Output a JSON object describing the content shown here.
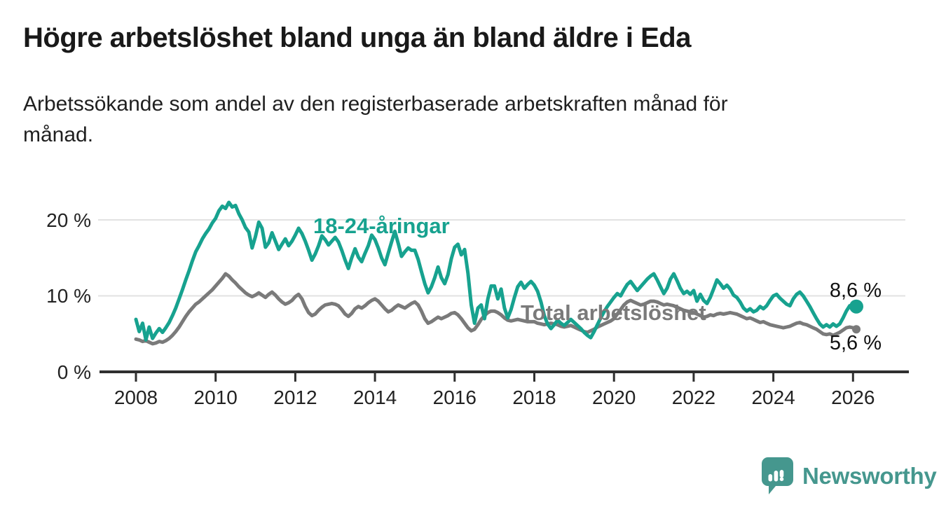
{
  "header": {
    "title": "Högre arbetslöshet bland unga än bland äldre i Eda",
    "subtitle_lines": [
      "Arbetssökande som andel av den registerbaserade arbetskraften månad för",
      "månad."
    ]
  },
  "chart_data": {
    "type": "line",
    "frequency": "monthly",
    "x_start": "2008-01",
    "x_end": "2026-02",
    "x_tick_labels": [
      "2008",
      "2010",
      "2012",
      "2014",
      "2016",
      "2018",
      "2020",
      "2022",
      "2024",
      "2026"
    ],
    "y_tick_labels": [
      "20 %",
      "10 %",
      "0 %"
    ],
    "ylim": [
      0,
      23
    ],
    "unit": "%",
    "grid": "horizontal",
    "legend_position": "inline-labels",
    "series": [
      {
        "name": "18-24-åringar",
        "color": "#17a28f",
        "end_label": "8,6 %",
        "end_value": 8.6,
        "values": [
          6.9,
          5.3,
          6.4,
          4.2,
          5.9,
          4.4,
          5.1,
          5.7,
          5.2,
          5.8,
          6.5,
          7.4,
          8.4,
          9.6,
          10.8,
          12.1,
          13.3,
          14.6,
          15.8,
          16.6,
          17.5,
          18.2,
          18.8,
          19.6,
          20.2,
          21.2,
          21.8,
          21.5,
          22.3,
          21.7,
          21.9,
          20.8,
          20.0,
          19.0,
          18.4,
          16.3,
          17.8,
          19.7,
          18.9,
          16.4,
          17.0,
          18.3,
          17.2,
          16.1,
          16.8,
          17.5,
          16.6,
          17.2,
          18.0,
          18.9,
          18.2,
          17.2,
          16.0,
          14.7,
          15.5,
          16.6,
          17.9,
          17.4,
          16.7,
          17.2,
          17.7,
          17.1,
          16.0,
          14.7,
          13.6,
          15.0,
          16.2,
          15.1,
          14.5,
          15.6,
          16.6,
          18.0,
          17.4,
          16.3,
          15.0,
          14.1,
          15.6,
          17.1,
          18.5,
          16.9,
          15.2,
          15.8,
          16.3,
          16.0,
          16.0,
          14.8,
          13.2,
          11.6,
          10.4,
          11.2,
          12.4,
          13.8,
          12.4,
          11.6,
          12.8,
          14.9,
          16.4,
          16.8,
          15.4,
          16.1,
          13.0,
          8.8,
          6.4,
          8.4,
          8.8,
          7.0,
          9.6,
          11.3,
          11.3,
          9.6,
          10.9,
          8.4,
          7.1,
          8.2,
          9.8,
          11.2,
          11.8,
          11.0,
          11.5,
          11.9,
          11.4,
          10.6,
          9.2,
          7.4,
          6.3,
          5.7,
          6.2,
          6.8,
          6.4,
          6.1,
          6.5,
          6.9,
          6.5,
          6.1,
          5.7,
          5.2,
          4.8,
          4.5,
          5.3,
          6.2,
          7.1,
          7.9,
          8.6,
          9.2,
          9.8,
          10.3,
          10.0,
          10.8,
          11.5,
          11.9,
          11.3,
          10.7,
          11.2,
          11.7,
          12.2,
          12.6,
          12.9,
          12.1,
          11.2,
          10.3,
          11.0,
          12.2,
          12.9,
          12.0,
          11.0,
          10.3,
          10.6,
          10.2,
          10.7,
          9.3,
          10.2,
          9.4,
          9.0,
          9.8,
          10.9,
          12.1,
          11.6,
          11.0,
          11.4,
          10.9,
          10.1,
          9.8,
          9.2,
          8.4,
          8.0,
          8.3,
          7.9,
          8.1,
          8.6,
          8.3,
          8.7,
          9.4,
          10.0,
          10.2,
          9.7,
          9.3,
          8.9,
          8.7,
          9.6,
          10.2,
          10.5,
          10.0,
          9.3,
          8.6,
          7.8,
          7.0,
          6.3,
          5.9,
          6.2,
          5.9,
          6.3,
          6.0,
          6.3,
          7.1,
          8.0,
          8.7,
          8.3,
          8.6
        ]
      },
      {
        "name": "Total arbetslöshet",
        "color": "#7a7a7a",
        "end_label": "5,6 %",
        "end_value": 5.6,
        "values": [
          4.3,
          4.2,
          4.0,
          4.1,
          3.9,
          3.7,
          3.8,
          4.0,
          3.9,
          4.1,
          4.4,
          4.8,
          5.3,
          5.9,
          6.6,
          7.3,
          7.9,
          8.4,
          8.9,
          9.2,
          9.6,
          10.0,
          10.4,
          10.8,
          11.3,
          11.8,
          12.3,
          12.9,
          12.6,
          12.1,
          11.7,
          11.2,
          10.8,
          10.4,
          10.1,
          9.9,
          10.1,
          10.4,
          10.1,
          9.8,
          10.2,
          10.5,
          10.1,
          9.6,
          9.2,
          8.9,
          9.1,
          9.4,
          9.9,
          10.2,
          9.6,
          8.6,
          7.8,
          7.4,
          7.6,
          8.1,
          8.5,
          8.8,
          8.9,
          9.0,
          8.9,
          8.7,
          8.2,
          7.6,
          7.3,
          7.7,
          8.3,
          8.6,
          8.4,
          8.7,
          9.1,
          9.4,
          9.6,
          9.3,
          8.8,
          8.3,
          7.9,
          8.1,
          8.5,
          8.8,
          8.6,
          8.4,
          8.7,
          9.0,
          9.2,
          8.8,
          8.0,
          7.0,
          6.4,
          6.6,
          6.9,
          7.2,
          7.0,
          7.2,
          7.4,
          7.7,
          7.8,
          7.5,
          7.0,
          6.4,
          5.8,
          5.4,
          5.6,
          6.2,
          6.9,
          7.4,
          7.8,
          8.0,
          8.0,
          7.8,
          7.5,
          7.1,
          6.8,
          6.7,
          6.8,
          6.9,
          6.8,
          6.7,
          6.6,
          6.6,
          6.6,
          6.4,
          6.3,
          6.2,
          6.3,
          6.4,
          6.3,
          6.2,
          6.0,
          5.9,
          6.0,
          6.1,
          5.9,
          5.7,
          5.5,
          5.3,
          5.2,
          5.4,
          5.6,
          5.9,
          6.1,
          6.3,
          6.5,
          6.7,
          7.0,
          7.6,
          8.2,
          8.8,
          9.2,
          9.4,
          9.2,
          9.0,
          8.8,
          8.9,
          9.1,
          9.3,
          9.3,
          9.2,
          9.0,
          8.8,
          8.9,
          8.8,
          8.7,
          8.5,
          8.3,
          8.1,
          8.0,
          7.9,
          7.8,
          7.6,
          7.4,
          7.2,
          7.3,
          7.5,
          7.4,
          7.6,
          7.7,
          7.6,
          7.7,
          7.8,
          7.7,
          7.6,
          7.4,
          7.2,
          7.0,
          7.1,
          6.9,
          6.7,
          6.5,
          6.6,
          6.4,
          6.2,
          6.1,
          6.0,
          5.9,
          5.8,
          5.9,
          6.0,
          6.2,
          6.4,
          6.5,
          6.3,
          6.2,
          6.0,
          5.8,
          5.6,
          5.3,
          5.0,
          4.9,
          5.0,
          4.8,
          5.0,
          5.2,
          5.5,
          5.8,
          5.9,
          5.8,
          5.6
        ]
      }
    ]
  },
  "branding": {
    "logo_text": "Newsworthy",
    "logo_color": "#45978e",
    "logo_icon": "bar-chart-speech-bubble-icon"
  }
}
